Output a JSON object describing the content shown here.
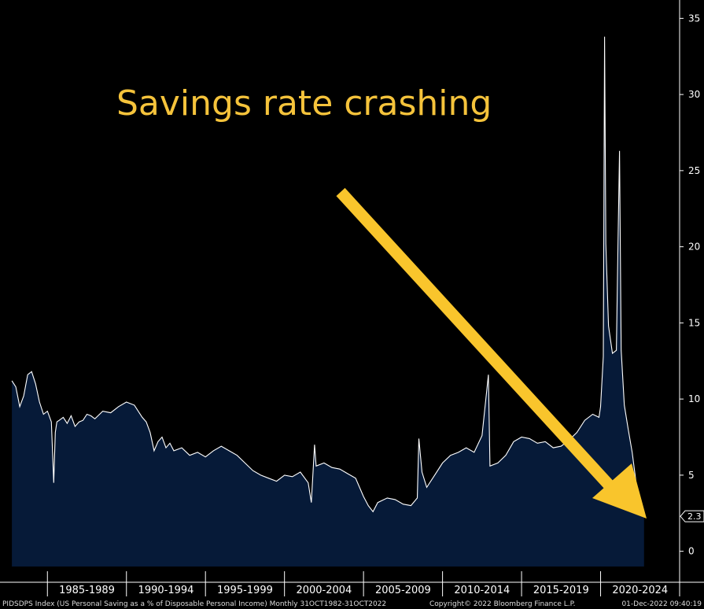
{
  "chart_data": {
    "type": "area",
    "title": "Savings rate crashing",
    "ylim": [
      -1,
      36
    ],
    "yticks": [
      0,
      5,
      10,
      15,
      20,
      25,
      30,
      35
    ],
    "y_axis_side": "right",
    "grid": false,
    "xlim": [
      1982.0,
      2025.0
    ],
    "x_tick_labels": [
      "1985-1989",
      "1990-1994",
      "1995-1999",
      "2000-2004",
      "2005-2009",
      "2010-2014",
      "2015-2019",
      "2020-2024"
    ],
    "last_value_label": "2.3",
    "colors": {
      "area": "#061a38",
      "line": "#ffffff",
      "title": "#f5c33b",
      "arrow": "#f9c52c"
    },
    "series": [
      {
        "x": [
          1982.75,
          1983.0,
          1983.25,
          1983.5,
          1983.75,
          1984.0,
          1984.25,
          1984.5,
          1984.75,
          1985.0,
          1985.25,
          1985.4,
          1985.5,
          1985.6,
          1985.75,
          1986.0,
          1986.25,
          1986.5,
          1986.75,
          1987.0,
          1987.25,
          1987.5,
          1987.75,
          1988.0,
          1988.5,
          1989.0,
          1989.5,
          1990.0,
          1990.5,
          1991.0,
          1991.25,
          1991.5,
          1991.75,
          1992.0,
          1992.25,
          1992.5,
          1992.75,
          1993.0,
          1993.5,
          1994.0,
          1994.5,
          1995.0,
          1995.5,
          1996.0,
          1996.5,
          1997.0,
          1997.5,
          1998.0,
          1998.5,
          1999.0,
          1999.5,
          2000.0,
          2000.5,
          2001.0,
          2001.5,
          2001.7,
          2001.9,
          2002.0,
          2002.5,
          2003.0,
          2003.5,
          2004.0,
          2004.5,
          2005.0,
          2005.3,
          2005.6,
          2005.9,
          2006.5,
          2007.0,
          2007.5,
          2008.0,
          2008.4,
          2008.5,
          2008.7,
          2009.0,
          2009.5,
          2010.0,
          2010.5,
          2011.0,
          2011.5,
          2012.0,
          2012.5,
          2012.9,
          2013.0,
          2013.5,
          2014.0,
          2014.5,
          2015.0,
          2015.5,
          2016.0,
          2016.5,
          2017.0,
          2017.5,
          2018.0,
          2018.5,
          2019.0,
          2019.5,
          2019.9,
          2020.0,
          2020.17,
          2020.25,
          2020.33,
          2020.5,
          2020.75,
          2021.0,
          2021.1,
          2021.2,
          2021.3,
          2021.5,
          2021.75,
          2022.0,
          2022.25,
          2022.5,
          2022.75
        ],
        "y": [
          11.2,
          10.8,
          9.5,
          10.2,
          11.6,
          11.8,
          11.0,
          9.8,
          9.0,
          9.2,
          8.5,
          4.5,
          7.8,
          8.5,
          8.6,
          8.8,
          8.4,
          8.9,
          8.2,
          8.5,
          8.6,
          9.0,
          8.9,
          8.7,
          9.2,
          9.1,
          9.5,
          9.8,
          9.6,
          8.8,
          8.5,
          7.8,
          6.6,
          7.2,
          7.5,
          6.8,
          7.1,
          6.6,
          6.8,
          6.3,
          6.5,
          6.2,
          6.6,
          6.9,
          6.6,
          6.3,
          5.8,
          5.3,
          5.0,
          4.8,
          4.6,
          5.0,
          4.9,
          5.2,
          4.5,
          3.2,
          7.0,
          5.6,
          5.8,
          5.5,
          5.4,
          5.1,
          4.8,
          3.6,
          3.0,
          2.6,
          3.2,
          3.5,
          3.4,
          3.1,
          3.0,
          3.5,
          7.4,
          5.2,
          4.2,
          5.0,
          5.8,
          6.3,
          6.5,
          6.8,
          6.5,
          7.6,
          11.6,
          5.6,
          5.8,
          6.3,
          7.2,
          7.5,
          7.4,
          7.1,
          7.2,
          6.8,
          6.9,
          7.3,
          7.8,
          8.6,
          9.0,
          8.8,
          9.5,
          12.8,
          33.8,
          20.2,
          14.8,
          13.0,
          13.2,
          20.0,
          26.3,
          13.2,
          9.6,
          8.0,
          6.5,
          4.5,
          3.2,
          2.3
        ]
      }
    ],
    "footer": {
      "left": "PIDSDPS Index (US Personal Saving as a % of Disposable Personal Income)  Monthly 31OCT1982-31OCT2022",
      "center": "Copyright© 2022 Bloomberg Finance L.P.",
      "right": "01-Dec-2022 09:40:19"
    }
  }
}
